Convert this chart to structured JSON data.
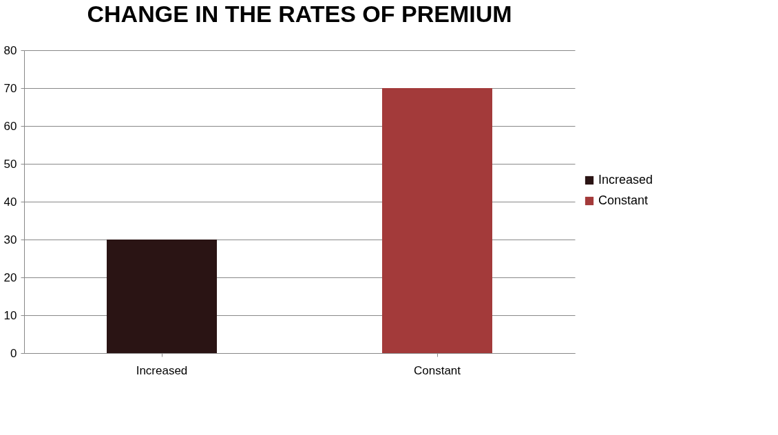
{
  "chart_data": {
    "type": "bar",
    "title": "CHANGE IN THE RATES OF PREMIUM",
    "categories": [
      "Increased",
      "Constant"
    ],
    "series": [
      {
        "name": "Increased",
        "color": "#2a1414",
        "values": [
          30,
          null
        ]
      },
      {
        "name": "Constant",
        "color": "#a33a3a",
        "values": [
          null,
          70
        ]
      }
    ],
    "ylim": [
      0,
      80
    ],
    "yticks": [
      0,
      10,
      20,
      30,
      40,
      50,
      60,
      70,
      80
    ],
    "grid": "y",
    "legend": "right"
  }
}
